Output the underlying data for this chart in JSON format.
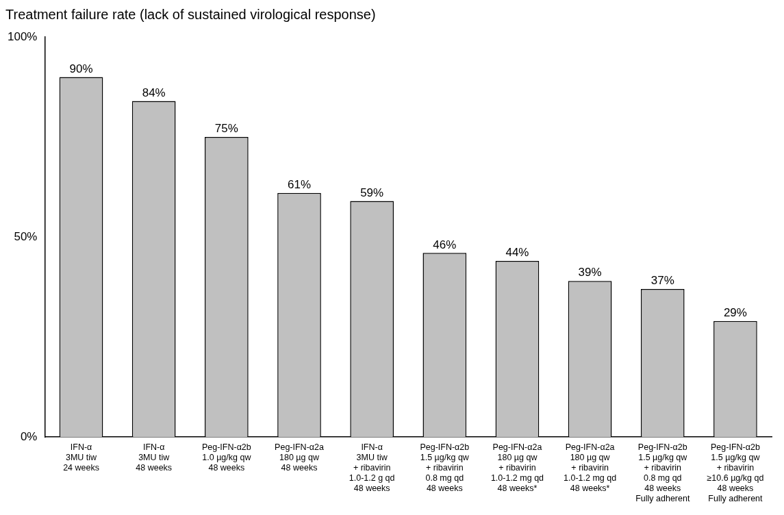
{
  "chart_data": {
    "type": "bar",
    "title": "Treatment failure rate (lack of sustained virological response)",
    "categories": [
      "IFN-α\n3MU tiw\n24 weeks",
      "IFN-α\n3MU tiw\n48 weeks",
      "Peg-IFN-α2b\n1.0 µg/kg qw\n48 weeks",
      "Peg-IFN-α2a\n180 µg qw\n48 weeks",
      "IFN-α\n3MU tiw\n+ ribavirin\n1.0-1.2 g qd\n48 weeks",
      "Peg-IFN-α2b\n1.5 µg/kg qw\n+ ribavirin\n0.8 mg qd\n48 weeks",
      "Peg-IFN-α2a\n180 µg qw\n+ ribavirin\n1.0-1.2 mg qd\n48 weeks*",
      "Peg-IFN-α2a\n180 µg qw\n+ ribavirin\n1.0-1.2 mg qd\n48 weeks*",
      "Peg-IFN-α2b\n1.5 µg/kg qw\n+ ribavirin\n0.8 mg qd\n48 weeks\nFully adherent",
      "Peg-IFN-α2b\n1.5 µg/kg qw\n+ ribavirin\n≥10.6 µg/kg qd\n48 weeks\nFully adherent"
    ],
    "values": [
      90,
      84,
      75,
      61,
      59,
      46,
      44,
      39,
      37,
      29
    ],
    "value_labels": [
      "90%",
      "84%",
      "75%",
      "61%",
      "59%",
      "46%",
      "44%",
      "39%",
      "37%",
      "29%"
    ],
    "color": "#c0c0c0",
    "ylim": [
      0,
      100
    ],
    "yticks": [
      {
        "value": 0,
        "label": "0%"
      },
      {
        "value": 50,
        "label": "50%"
      },
      {
        "value": 100,
        "label": "100%"
      }
    ],
    "grid": false,
    "legend": false
  }
}
